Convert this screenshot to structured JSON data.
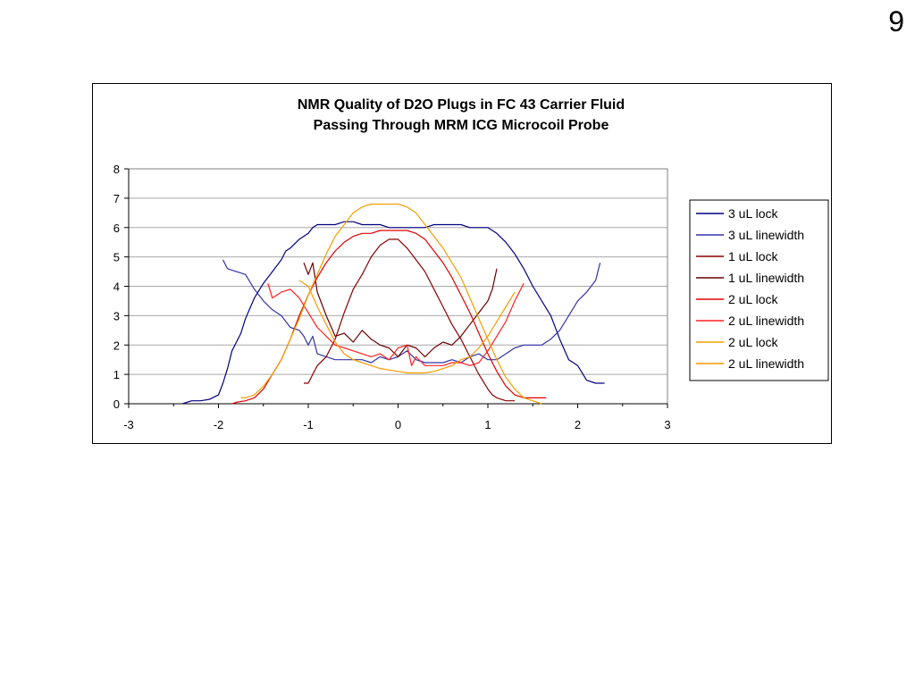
{
  "page": {
    "slide_number": "9"
  },
  "chart_data": {
    "type": "line",
    "title_lines": [
      "NMR Quality of D2O Plugs in FC 43 Carrier Fluid",
      "Passing Through MRM ICG Microcoil Probe"
    ],
    "xlabel": "",
    "ylabel": "",
    "xlim": [
      -3,
      3
    ],
    "ylim": [
      0,
      8
    ],
    "x_ticks": [
      "-3",
      "-2",
      "-1",
      "0",
      "1",
      "2",
      "3"
    ],
    "y_ticks": [
      "0",
      "1",
      "2",
      "3",
      "4",
      "5",
      "6",
      "7",
      "8"
    ],
    "grid": "horizontal",
    "legend_position": "right",
    "series": [
      {
        "name": "3 uL lock",
        "color": "#000080",
        "x": [
          -2.4,
          -2.3,
          -2.2,
          -2.1,
          -2.0,
          -1.95,
          -1.9,
          -1.85,
          -1.8,
          -1.75,
          -1.7,
          -1.6,
          -1.5,
          -1.4,
          -1.3,
          -1.25,
          -1.2,
          -1.1,
          -1.0,
          -0.95,
          -0.9,
          -0.8,
          -0.7,
          -0.6,
          -0.5,
          -0.4,
          -0.3,
          -0.2,
          -0.1,
          0.0,
          0.1,
          0.2,
          0.3,
          0.4,
          0.5,
          0.6,
          0.7,
          0.8,
          0.9,
          1.0,
          1.1,
          1.2,
          1.3,
          1.4,
          1.5,
          1.6,
          1.7,
          1.8,
          1.9,
          2.0,
          2.1,
          2.2,
          2.3
        ],
        "y": [
          0.0,
          0.1,
          0.1,
          0.15,
          0.3,
          0.7,
          1.2,
          1.8,
          2.1,
          2.4,
          2.9,
          3.6,
          4.1,
          4.5,
          4.9,
          5.2,
          5.3,
          5.6,
          5.8,
          6.0,
          6.1,
          6.1,
          6.1,
          6.2,
          6.2,
          6.1,
          6.1,
          6.1,
          6.0,
          6.0,
          6.0,
          6.0,
          6.0,
          6.1,
          6.1,
          6.1,
          6.1,
          6.0,
          6.0,
          6.0,
          5.8,
          5.5,
          5.1,
          4.6,
          4.0,
          3.5,
          3.0,
          2.2,
          1.5,
          1.3,
          0.8,
          0.7,
          0.7
        ]
      },
      {
        "name": "3 uL linewidth",
        "color": "#3333aa",
        "x": [
          -1.95,
          -1.9,
          -1.8,
          -1.7,
          -1.6,
          -1.5,
          -1.4,
          -1.3,
          -1.2,
          -1.1,
          -1.05,
          -1.0,
          -0.95,
          -0.9,
          -0.8,
          -0.7,
          -0.6,
          -0.5,
          -0.4,
          -0.3,
          -0.2,
          -0.1,
          0.0,
          0.1,
          0.2,
          0.3,
          0.4,
          0.5,
          0.6,
          0.7,
          0.8,
          0.9,
          1.0,
          1.1,
          1.2,
          1.3,
          1.4,
          1.5,
          1.6,
          1.7,
          1.8,
          1.9,
          2.0,
          2.1,
          2.2,
          2.25
        ],
        "y": [
          4.9,
          4.6,
          4.5,
          4.4,
          3.9,
          3.5,
          3.2,
          3.0,
          2.6,
          2.5,
          2.3,
          2.0,
          2.3,
          1.7,
          1.6,
          1.5,
          1.5,
          1.5,
          1.5,
          1.4,
          1.6,
          1.5,
          1.6,
          1.8,
          1.5,
          1.4,
          1.4,
          1.4,
          1.5,
          1.4,
          1.6,
          1.7,
          1.5,
          1.5,
          1.7,
          1.9,
          2.0,
          2.0,
          2.0,
          2.2,
          2.5,
          3.0,
          3.5,
          3.8,
          4.2,
          4.8
        ]
      },
      {
        "name": "1 uL lock",
        "color": "#8b0000",
        "x": [
          -1.05,
          -1.0,
          -0.95,
          -0.9,
          -0.8,
          -0.7,
          -0.6,
          -0.5,
          -0.4,
          -0.3,
          -0.2,
          -0.1,
          0.0,
          0.1,
          0.2,
          0.3,
          0.4,
          0.5,
          0.6,
          0.7,
          0.8,
          0.9,
          1.0,
          1.05,
          1.1,
          1.2,
          1.3
        ],
        "y": [
          0.7,
          0.7,
          1.0,
          1.3,
          1.6,
          2.2,
          3.1,
          3.9,
          4.4,
          5.0,
          5.4,
          5.6,
          5.6,
          5.3,
          4.9,
          4.5,
          3.9,
          3.3,
          2.7,
          2.2,
          1.6,
          1.0,
          0.5,
          0.3,
          0.2,
          0.1,
          0.1
        ]
      },
      {
        "name": "1 uL linewidth",
        "color": "#6b0000",
        "x": [
          -1.05,
          -1.0,
          -0.95,
          -0.9,
          -0.8,
          -0.7,
          -0.6,
          -0.5,
          -0.4,
          -0.3,
          -0.2,
          -0.1,
          0.0,
          0.1,
          0.2,
          0.3,
          0.4,
          0.5,
          0.6,
          0.7,
          0.8,
          0.9,
          1.0,
          1.05,
          1.1
        ],
        "y": [
          4.8,
          4.4,
          4.8,
          3.8,
          3.0,
          2.3,
          2.4,
          2.1,
          2.5,
          2.2,
          2.0,
          1.9,
          1.6,
          2.0,
          1.9,
          1.6,
          1.9,
          2.1,
          2.0,
          2.3,
          2.7,
          3.1,
          3.5,
          3.9,
          4.6
        ]
      },
      {
        "name": "2 uL lock",
        "color": "#e00000",
        "x": [
          -1.85,
          -1.8,
          -1.7,
          -1.6,
          -1.5,
          -1.4,
          -1.3,
          -1.2,
          -1.1,
          -1.0,
          -0.9,
          -0.8,
          -0.7,
          -0.6,
          -0.5,
          -0.4,
          -0.3,
          -0.2,
          -0.1,
          0.0,
          0.1,
          0.2,
          0.3,
          0.4,
          0.5,
          0.6,
          0.7,
          0.8,
          0.9,
          1.0,
          1.1,
          1.2,
          1.3,
          1.4,
          1.5,
          1.6,
          1.65
        ],
        "y": [
          0.0,
          0.05,
          0.1,
          0.2,
          0.5,
          1.0,
          1.5,
          2.2,
          3.0,
          3.7,
          4.3,
          4.8,
          5.2,
          5.5,
          5.7,
          5.8,
          5.8,
          5.9,
          5.9,
          5.9,
          5.9,
          5.8,
          5.6,
          5.2,
          4.8,
          4.3,
          3.7,
          3.1,
          2.4,
          1.7,
          1.1,
          0.6,
          0.3,
          0.2,
          0.2,
          0.2,
          0.2
        ]
      },
      {
        "name": "2 uL linewidth",
        "color": "#ff2020",
        "x": [
          -1.45,
          -1.4,
          -1.3,
          -1.2,
          -1.1,
          -1.0,
          -0.9,
          -0.8,
          -0.7,
          -0.6,
          -0.5,
          -0.4,
          -0.3,
          -0.2,
          -0.1,
          0.0,
          0.1,
          0.15,
          0.2,
          0.3,
          0.4,
          0.5,
          0.6,
          0.7,
          0.8,
          0.9,
          1.0,
          1.1,
          1.2,
          1.3,
          1.4
        ],
        "y": [
          4.1,
          3.6,
          3.8,
          3.9,
          3.6,
          3.1,
          2.6,
          2.3,
          2.0,
          1.9,
          1.8,
          1.7,
          1.6,
          1.7,
          1.5,
          1.9,
          2.0,
          1.3,
          1.6,
          1.3,
          1.3,
          1.3,
          1.4,
          1.4,
          1.3,
          1.4,
          1.8,
          2.3,
          2.8,
          3.5,
          4.1
        ]
      },
      {
        "name": "2 uL lock",
        "color": "#f0a000",
        "x": [
          -1.75,
          -1.7,
          -1.6,
          -1.5,
          -1.4,
          -1.3,
          -1.2,
          -1.1,
          -1.0,
          -0.9,
          -0.8,
          -0.7,
          -0.6,
          -0.5,
          -0.4,
          -0.3,
          -0.2,
          -0.1,
          0.0,
          0.1,
          0.2,
          0.3,
          0.4,
          0.5,
          0.6,
          0.7,
          0.8,
          0.9,
          1.0,
          1.1,
          1.2,
          1.3,
          1.4,
          1.5,
          1.6
        ],
        "y": [
          0.2,
          0.2,
          0.3,
          0.6,
          1.0,
          1.5,
          2.2,
          2.9,
          3.7,
          4.4,
          5.1,
          5.7,
          6.1,
          6.5,
          6.7,
          6.8,
          6.8,
          6.8,
          6.8,
          6.7,
          6.5,
          6.1,
          5.7,
          5.3,
          4.8,
          4.3,
          3.6,
          2.9,
          2.2,
          1.5,
          0.9,
          0.5,
          0.2,
          0.1,
          0.0
        ]
      },
      {
        "name": "2 uL linewidth",
        "color": "#ff9900",
        "x": [
          -1.1,
          -1.0,
          -0.9,
          -0.8,
          -0.7,
          -0.6,
          -0.5,
          -0.4,
          -0.3,
          -0.2,
          -0.1,
          0.0,
          0.1,
          0.2,
          0.3,
          0.4,
          0.5,
          0.6,
          0.7,
          0.8,
          0.9,
          1.0,
          1.1,
          1.2,
          1.3
        ],
        "y": [
          4.2,
          4.0,
          3.3,
          2.7,
          2.1,
          1.7,
          1.5,
          1.4,
          1.3,
          1.2,
          1.15,
          1.1,
          1.05,
          1.05,
          1.05,
          1.1,
          1.2,
          1.3,
          1.5,
          1.6,
          1.9,
          2.3,
          2.8,
          3.3,
          3.8
        ]
      }
    ]
  }
}
